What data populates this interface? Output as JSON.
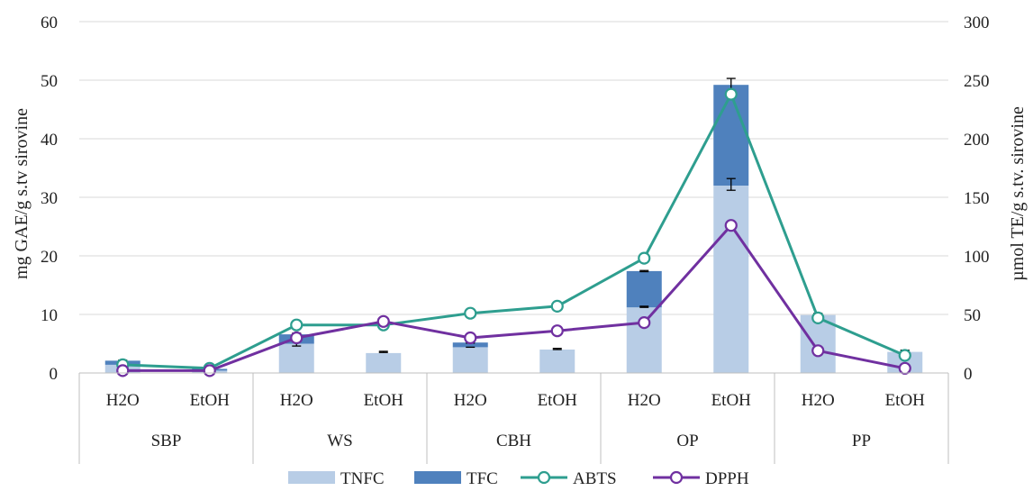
{
  "chart_data": {
    "type": "bar",
    "groups": [
      "SBP",
      "WS",
      "CBH",
      "OP",
      "PP"
    ],
    "categories": [
      "H2O",
      "EtOH",
      "H2O",
      "EtOH",
      "H2O",
      "EtOH",
      "H2O",
      "EtOH",
      "H2O",
      "EtOH"
    ],
    "group_of_category": [
      0,
      0,
      1,
      1,
      2,
      2,
      3,
      3,
      4,
      4
    ],
    "stacked_bars": [
      {
        "name": "TNFC",
        "axis": "left",
        "color": "#b8cde6",
        "values": [
          1.4,
          0.4,
          5.0,
          3.4,
          4.4,
          4.0,
          11.2,
          32.0,
          9.9,
          3.6
        ]
      },
      {
        "name": "TFC",
        "axis": "left",
        "color": "#4f81bd",
        "values": [
          0.7,
          0.3,
          1.6,
          0.0,
          0.8,
          0.0,
          6.2,
          17.2,
          0.0,
          0.0
        ]
      }
    ],
    "error_bars": {
      "tnfc_tops": [
        1.4,
        0.4,
        5.0,
        3.6,
        4.4,
        4.1,
        11.3,
        32.2,
        10.1,
        3.8
      ],
      "tnfc_err": [
        0,
        0,
        0.4,
        0.1,
        0,
        0.1,
        0.1,
        1.0,
        0.1,
        0.1
      ],
      "total_tops": [
        2.1,
        0.7,
        6.6,
        null,
        5.2,
        null,
        17.4,
        49.2,
        null,
        null
      ],
      "total_err": [
        0.1,
        0,
        0.2,
        null,
        0.1,
        null,
        0.1,
        1.1,
        null,
        null
      ]
    },
    "lines": [
      {
        "name": "ABTS",
        "axis": "right",
        "color": "#2e9e8f",
        "values": [
          7,
          4,
          41,
          41,
          51,
          57,
          98,
          238,
          47,
          15
        ]
      },
      {
        "name": "DPPH",
        "axis": "right",
        "color": "#7030a0",
        "values": [
          2,
          2,
          30,
          44,
          30,
          36,
          43,
          126,
          19,
          4
        ]
      }
    ],
    "ylabel": "mg GAE/g s.tv sirovine",
    "y2label": "µmol TE/g s.tv. sirovine",
    "ylim": [
      0,
      60
    ],
    "y2lim": [
      0,
      300
    ],
    "yticks": [
      "0",
      "10",
      "20",
      "30",
      "40",
      "50",
      "60"
    ],
    "y2ticks": [
      "0",
      "50",
      "100",
      "150",
      "200",
      "250",
      "300"
    ],
    "grid": true,
    "legend_position": "bottom",
    "legend": [
      "TNFC",
      "TFC",
      "ABTS",
      "DPPH"
    ]
  }
}
